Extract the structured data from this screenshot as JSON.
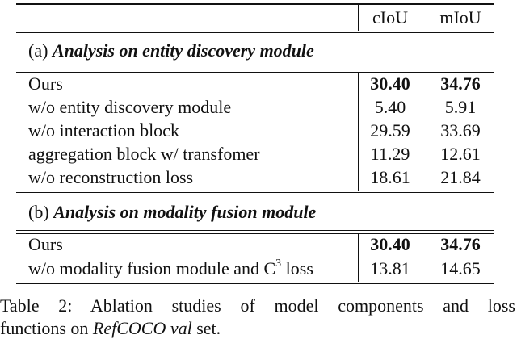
{
  "table": {
    "header": [
      "cIoU",
      "mIoU"
    ],
    "sections": [
      {
        "label": "(a)",
        "title": "Analysis on entity discovery module",
        "rows": [
          {
            "name": "Ours",
            "ciou": "30.40",
            "miou": "34.76"
          },
          {
            "name": "w/o entity discovery module",
            "ciou": "5.40",
            "miou": "5.91"
          },
          {
            "name": "w/o interaction block",
            "ciou": "29.59",
            "miou": "33.69"
          },
          {
            "name": "aggregation block w/ transfomer",
            "ciou": "11.29",
            "miou": "12.61"
          },
          {
            "name": "w/o reconstruction loss",
            "ciou": "18.61",
            "miou": "21.84"
          }
        ]
      },
      {
        "label": "(b)",
        "title": "Analysis on modality fusion module",
        "rows": [
          {
            "name": "Ours",
            "ciou": "30.40",
            "miou": "34.76"
          },
          {
            "name": "w/o modality fusion module and C",
            "sup": "3",
            "tail": " loss",
            "ciou": "13.81",
            "miou": "14.65"
          }
        ]
      }
    ]
  },
  "caption": {
    "label": "Table 2:",
    "line1": "Ablation studies of model components and loss",
    "line2": [
      "functions on",
      "RefCOCO",
      "val",
      "set."
    ]
  }
}
